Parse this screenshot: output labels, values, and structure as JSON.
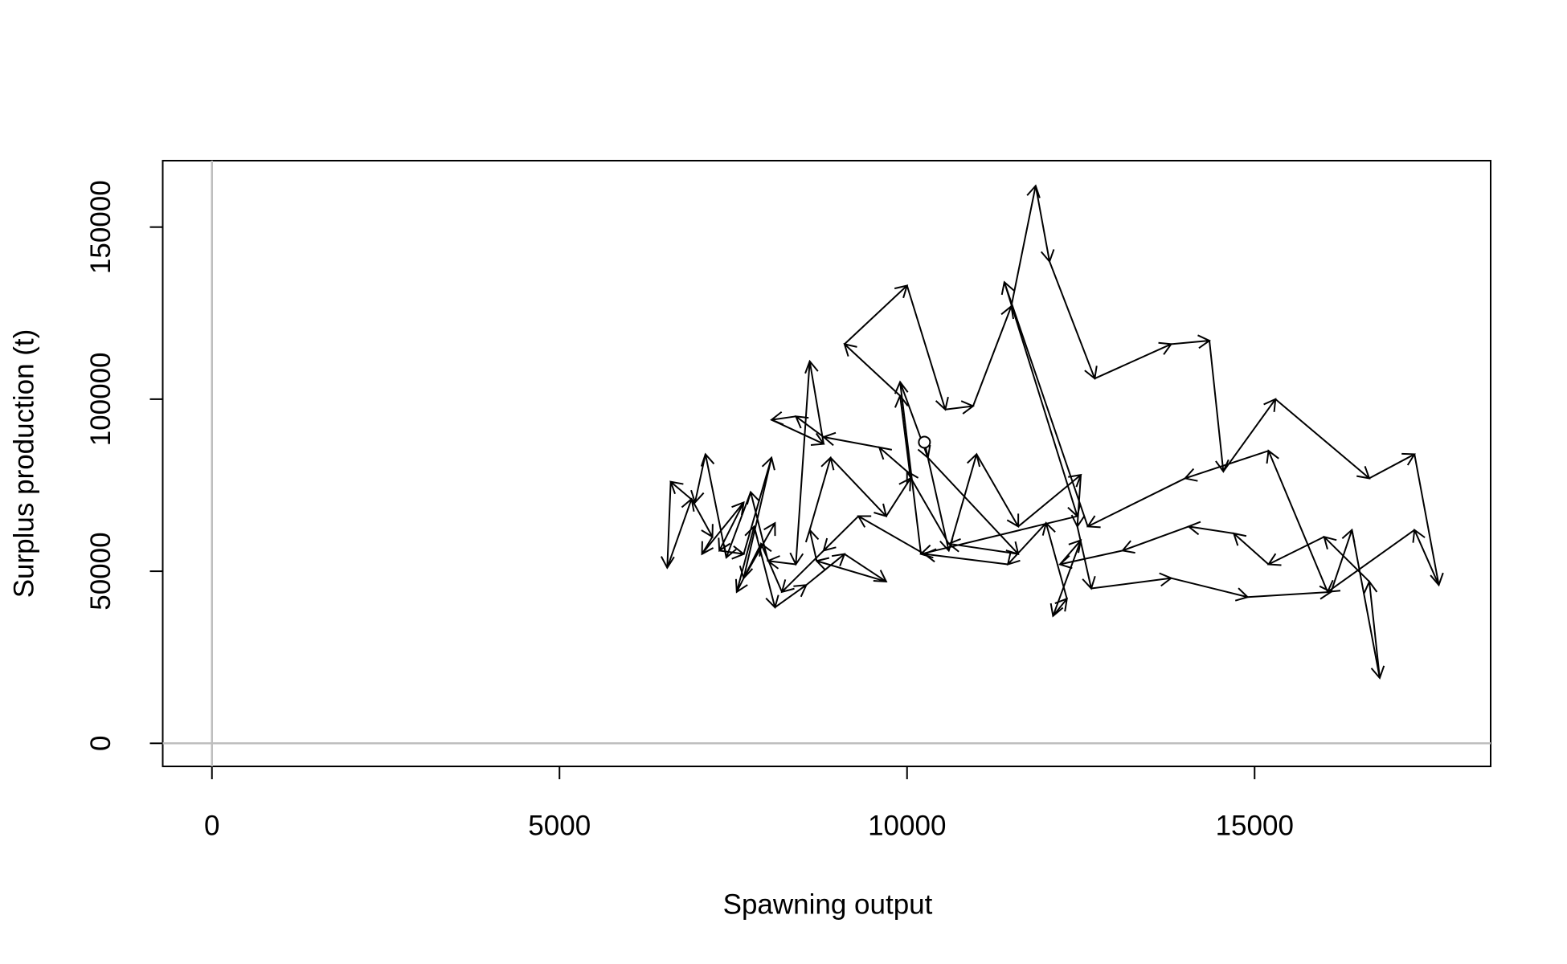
{
  "chart_data": {
    "type": "phase",
    "xlabel": "Spawning output",
    "ylabel": "Surplus production (t)",
    "x": [
      10250,
      10600,
      11000,
      11600,
      12500,
      12450,
      12650,
      13800,
      14900,
      16100,
      16400,
      16800,
      16650,
      16000,
      15200,
      14700,
      14050,
      13100,
      12200,
      12500,
      12100,
      12300,
      12000,
      11450,
      10250,
      9300,
      8800,
      8200,
      7900,
      7550,
      7800,
      8100,
      8550,
      9100,
      9700,
      8700,
      8600,
      8900,
      9700,
      10050,
      9900,
      9100,
      10000,
      10550,
      10950,
      11500,
      11850,
      12050,
      12700,
      13800,
      14350,
      14550,
      15300,
      16650,
      17300,
      17650,
      17300,
      16050,
      15200,
      14000,
      12600,
      11400,
      12450,
      10200,
      9900,
      10300,
      11600,
      10600,
      10000,
      9600,
      8800,
      8400,
      8050,
      8800,
      8600,
      8400,
      8000,
      7750,
      7400,
      7100,
      6950,
      6600,
      6550,
      6900,
      7200,
      7050,
      7650,
      7300,
      7650,
      8050,
      7650,
      8100
    ],
    "y": [
      87500,
      56000,
      84000,
      63000,
      78000,
      63000,
      45000,
      48000,
      42500,
      44000,
      62000,
      19000,
      47000,
      60000,
      52000,
      61000,
      63000,
      56000,
      52000,
      59000,
      37000,
      42000,
      64000,
      52000,
      55000,
      66000,
      56000,
      44000,
      58000,
      44000,
      63000,
      39500,
      46000,
      55000,
      47000,
      53000,
      62000,
      83000,
      66000,
      77000,
      101000,
      116000,
      133000,
      97000,
      98000,
      127000,
      162000,
      140000,
      106000,
      116000,
      117000,
      79000,
      100000,
      77000,
      84000,
      46000,
      62000,
      44000,
      85000,
      77000,
      63000,
      134000,
      66000,
      55000,
      105000,
      83000,
      55000,
      58000,
      79000,
      86000,
      89000,
      95000,
      94000,
      87000,
      111000,
      52000,
      53000,
      73000,
      54000,
      84000,
      70000,
      76000,
      51000,
      71000,
      60000,
      55000,
      70000,
      56000,
      55000,
      83000,
      48000,
      64000
    ],
    "color": "#000000",
    "xlim": [
      -708,
      18396
    ],
    "xticks": [
      0,
      5000,
      10000,
      15000
    ],
    "ylim": [
      -6700,
      169300
    ],
    "yticks": [
      0,
      50000,
      100000,
      150000
    ],
    "hline": 0,
    "vline": 0,
    "reference_color": "#bebebe"
  }
}
